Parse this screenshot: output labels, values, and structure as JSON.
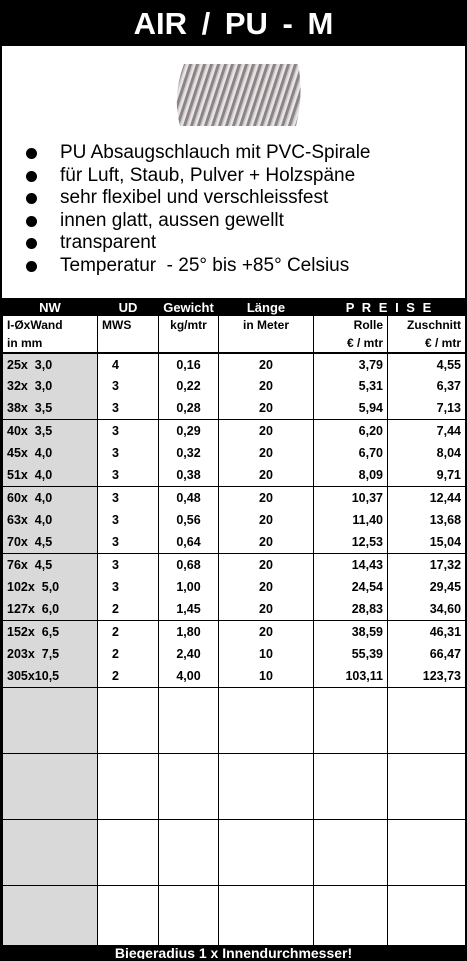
{
  "title": "AIR / PU - M",
  "bullets": [
    "PU Absaugschlauch mit PVC-Spirale",
    "für Luft, Staub, Pulver + Holzspäne",
    "sehr flexibel und verschleissfest",
    "innen glatt, aussen gewellt",
    "transparent",
    "Temperatur  - 25° bis +85° Celsius"
  ],
  "table": {
    "header": [
      "NW",
      "UD",
      "Gewicht",
      "Länge",
      "P R E I S E"
    ],
    "subheader": [
      [
        "I-ØxWand",
        "in mm"
      ],
      [
        "MWS"
      ],
      [
        "kg/mtr"
      ],
      [
        "in Meter"
      ],
      [
        "Rolle",
        "€ / mtr"
      ],
      [
        "Zuschnitt",
        "€ / mtr"
      ]
    ],
    "groups": [
      [
        [
          "25x  3,0",
          "4",
          "0,16",
          "20",
          "3,79",
          "4,55"
        ],
        [
          "32x  3,0",
          "3",
          "0,22",
          "20",
          "5,31",
          "6,37"
        ],
        [
          "38x  3,5",
          "3",
          "0,28",
          "20",
          "5,94",
          "7,13"
        ]
      ],
      [
        [
          "40x  3,5",
          "3",
          "0,29",
          "20",
          "6,20",
          "7,44"
        ],
        [
          "45x  4,0",
          "3",
          "0,32",
          "20",
          "6,70",
          "8,04"
        ],
        [
          "51x  4,0",
          "3",
          "0,38",
          "20",
          "8,09",
          "9,71"
        ]
      ],
      [
        [
          "60x  4,0",
          "3",
          "0,48",
          "20",
          "10,37",
          "12,44"
        ],
        [
          "63x  4,0",
          "3",
          "0,56",
          "20",
          "11,40",
          "13,68"
        ],
        [
          "70x  4,5",
          "3",
          "0,64",
          "20",
          "12,53",
          "15,04"
        ]
      ],
      [
        [
          "76x  4,5",
          "3",
          "0,68",
          "20",
          "14,43",
          "17,32"
        ],
        [
          "102x  5,0",
          "3",
          "1,00",
          "20",
          "24,54",
          "29,45"
        ],
        [
          "127x  6,0",
          "2",
          "1,45",
          "20",
          "28,83",
          "34,60"
        ]
      ],
      [
        [
          "152x  6,5",
          "2",
          "1,80",
          "20",
          "38,59",
          "46,31"
        ],
        [
          "203x  7,5",
          "2",
          "2,40",
          "10",
          "55,39",
          "66,47"
        ],
        [
          "305x10,5",
          "2",
          "4,00",
          "10",
          "103,11",
          "123,73"
        ]
      ]
    ]
  },
  "footer": "Biegeradius 1 x Innendurchmesser!"
}
